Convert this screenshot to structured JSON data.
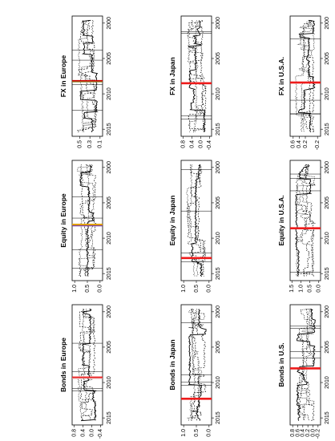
{
  "page": {
    "orientation": "rotated 90 degrees counter-clockwise",
    "background": "#ffffff"
  },
  "chart_data": [
    {
      "id": "fx-europe",
      "type": "line",
      "title": "FX in Europe",
      "xlim": [
        1999,
        2016
      ],
      "x_ticks": [
        "2000",
        "2005",
        "2010",
        "2015"
      ],
      "ylim": [
        0.05,
        0.65
      ],
      "y_ticks": [
        "0.1",
        "0.3",
        "0.5"
      ],
      "series_description": "multiple dashed/dotted black lines with bands",
      "breakpoints": [
        {
          "x": 2008.2,
          "color": "#cc0000"
        },
        {
          "x": 2008.3,
          "color": "#8a8a2a"
        }
      ],
      "line_color": "#000000",
      "seed": 11
    },
    {
      "id": "fx-japan",
      "type": "line",
      "title": "FX in Japan",
      "xlim": [
        1999,
        2016
      ],
      "x_ticks": [
        "2000",
        "2005",
        "2010",
        "2015"
      ],
      "ylim": [
        -0.5,
        0.9
      ],
      "y_ticks": [
        "-0.4",
        "0.0",
        "0.4",
        "0.8"
      ],
      "series_description": "multiple dashed/dotted black lines with bands",
      "breakpoints": [
        {
          "x": 2008.5,
          "color": "#ee1c1c"
        }
      ],
      "line_color": "#000000",
      "seed": 23
    },
    {
      "id": "fx-usa",
      "type": "line",
      "title": "FX in U.S.A.",
      "xlim": [
        1999,
        2016
      ],
      "x_ticks": [
        "2000",
        "2005",
        "2010",
        "2015"
      ],
      "ylim": [
        -0.3,
        0.7
      ],
      "y_ticks": [
        "-0.2",
        "0.2",
        "0.4",
        "0.6"
      ],
      "series_description": "multiple dashed/dotted black lines with bands",
      "breakpoints": [
        {
          "x": 2008.4,
          "color": "#ee1c1c"
        }
      ],
      "line_color": "#000000",
      "seed": 37
    },
    {
      "id": "equity-europe",
      "type": "line",
      "title": "Equity in Europe",
      "xlim": [
        1999,
        2016
      ],
      "x_ticks": [
        "2000",
        "2005",
        "2010",
        "2015"
      ],
      "ylim": [
        -0.1,
        1.1
      ],
      "y_ticks": [
        "0.0",
        "0.5",
        "1.0"
      ],
      "series_description": "multiple dashed/dotted black lines with bands",
      "breakpoints": [
        {
          "x": 2008.1,
          "color": "#e0a000"
        },
        {
          "x": 2008.25,
          "color": "#7a3fa0"
        }
      ],
      "line_color": "#000000",
      "seed": 41
    },
    {
      "id": "equity-japan",
      "type": "line",
      "title": "Equity in Japan",
      "xlim": [
        1999,
        2016
      ],
      "x_ticks": [
        "2000",
        "2005",
        "2010",
        "2015"
      ],
      "ylim": [
        -0.1,
        1.1
      ],
      "y_ticks": [
        "0.0",
        "0.5",
        "1.0"
      ],
      "series_description": "multiple dashed/dotted black lines with bands",
      "breakpoints": [
        {
          "x": 2012.8,
          "color": "#ee1c1c"
        }
      ],
      "line_color": "#000000",
      "seed": 53
    },
    {
      "id": "equity-usa",
      "type": "line",
      "title": "Equity in U.S.A.",
      "xlim": [
        1999,
        2016
      ],
      "x_ticks": [
        "2000",
        "2005",
        "2010",
        "2015"
      ],
      "ylim": [
        -0.1,
        1.6
      ],
      "y_ticks": [
        "0.0",
        "0.5",
        "1.0",
        "1.5"
      ],
      "series_description": "multiple dashed/dotted black lines with bands",
      "breakpoints": [
        {
          "x": 2008.6,
          "color": "#ee1c1c"
        }
      ],
      "line_color": "#000000",
      "seed": 67
    },
    {
      "id": "bonds-europe",
      "type": "line",
      "title": "Bonds in Europe",
      "xlim": [
        1999,
        2016
      ],
      "x_ticks": [
        "2000",
        "2005",
        "2010",
        "2015"
      ],
      "ylim": [
        -0.5,
        0.9
      ],
      "y_ticks": [
        "-0.4",
        "0.0",
        "0.4",
        "0.8"
      ],
      "series_description": "multiple dashed/dotted black lines with bands",
      "breakpoints": [
        {
          "x": 2009.3,
          "color": "#ee1c1c"
        },
        {
          "x": 2009.4,
          "color": "#e09090"
        }
      ],
      "line_color": "#000000",
      "seed": 79
    },
    {
      "id": "bonds-japan",
      "type": "line",
      "title": "Bonds in Japan",
      "xlim": [
        1999,
        2016
      ],
      "x_ticks": [
        "2000",
        "2005",
        "2010",
        "2015"
      ],
      "ylim": [
        -0.1,
        1.1
      ],
      "y_ticks": [
        "0.0",
        "0.5",
        "1.0"
      ],
      "series_description": "multiple dashed/dotted black lines with bands",
      "breakpoints": [
        {
          "x": 2012.3,
          "color": "#ee1c1c"
        }
      ],
      "line_color": "#000000",
      "seed": 83
    },
    {
      "id": "bonds-usa",
      "type": "line",
      "title": "Bonds in U.S.",
      "xlim": [
        1999,
        2016
      ],
      "x_ticks": [
        "2000",
        "2005",
        "2010",
        "2015"
      ],
      "ylim": [
        -0.3,
        0.9
      ],
      "y_ticks": [
        "-0.2",
        "0.0",
        "0.2",
        "0.4",
        "0.6",
        "0.8"
      ],
      "series_description": "multiple dashed/dotted black lines with bands",
      "breakpoints": [
        {
          "x": 2008.0,
          "color": "#ee1c1c"
        }
      ],
      "line_color": "#000000",
      "seed": 97
    }
  ]
}
